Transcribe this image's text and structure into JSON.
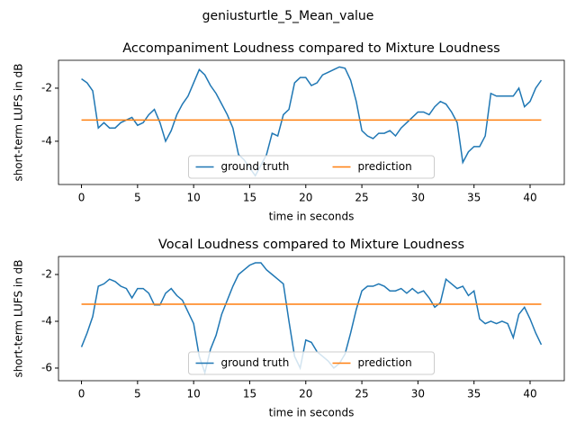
{
  "title": "geniusturtle_5_Mean_value",
  "chart_data": [
    {
      "type": "line",
      "title": "Accompaniment Loudness compared to Mixture Loudness",
      "xlabel": "time in seconds",
      "ylabel": "short-term LUFS in dB",
      "xlim": [
        -2.05,
        43.05
      ],
      "ylim": [
        -5.63,
        -0.95
      ],
      "xticks": [
        0,
        5,
        10,
        15,
        20,
        25,
        30,
        35,
        40
      ],
      "yticks": [
        -4,
        -2
      ],
      "legend": "lower center",
      "series": [
        {
          "name": "ground truth",
          "color": "#1f77b4",
          "x": [
            0,
            0.5,
            1,
            1.5,
            2,
            2.5,
            3,
            3.5,
            4,
            4.5,
            5,
            5.5,
            6,
            6.5,
            7,
            7.5,
            8,
            8.5,
            9,
            9.5,
            10,
            10.5,
            11,
            11.5,
            12,
            12.5,
            13,
            13.5,
            14,
            14.5,
            15,
            15.5,
            16,
            16.5,
            17,
            17.5,
            18,
            18.5,
            19,
            19.5,
            20,
            20.5,
            21,
            21.5,
            22,
            22.5,
            23,
            23.5,
            24,
            24.5,
            25,
            25.5,
            26,
            26.5,
            27,
            27.5,
            28,
            28.5,
            29,
            29.5,
            30,
            30.5,
            31,
            31.5,
            32,
            32.5,
            33,
            33.5,
            34,
            34.5,
            35,
            35.5,
            36,
            36.5,
            37,
            37.5,
            38,
            38.5,
            39,
            39.5,
            40,
            40.5,
            41
          ],
          "values": [
            -1.65,
            -1.8,
            -2.1,
            -3.5,
            -3.3,
            -3.5,
            -3.5,
            -3.3,
            -3.2,
            -3.1,
            -3.4,
            -3.3,
            -3.0,
            -2.8,
            -3.3,
            -4.0,
            -3.6,
            -3.0,
            -2.6,
            -2.3,
            -1.8,
            -1.3,
            -1.5,
            -1.9,
            -2.2,
            -2.6,
            -3.0,
            -3.5,
            -4.5,
            -4.7,
            -5.0,
            -5.3,
            -4.9,
            -4.5,
            -3.7,
            -3.8,
            -3.0,
            -2.8,
            -1.8,
            -1.6,
            -1.6,
            -1.9,
            -1.8,
            -1.5,
            -1.4,
            -1.3,
            -1.2,
            -1.25,
            -1.7,
            -2.5,
            -3.6,
            -3.8,
            -3.9,
            -3.7,
            -3.7,
            -3.6,
            -3.8,
            -3.5,
            -3.3,
            -3.1,
            -2.9,
            -2.9,
            -3.0,
            -2.7,
            -2.5,
            -2.6,
            -2.9,
            -3.3,
            -4.8,
            -4.4,
            -4.2,
            -4.2,
            -3.8,
            -2.2,
            -2.3,
            -2.3,
            -2.3,
            -2.3,
            -2.0,
            -2.7,
            -2.5,
            -2.0,
            -1.7
          ]
        },
        {
          "name": "prediction",
          "color": "#ff7f0e",
          "x": [
            0,
            41
          ],
          "values": [
            -3.2,
            -3.2
          ]
        }
      ]
    },
    {
      "type": "line",
      "title": "Vocal Loudness compared to Mixture Loudness",
      "xlabel": "time in seconds",
      "ylabel": "short-term LUFS in dB",
      "xlim": [
        -2.05,
        43.05
      ],
      "ylim": [
        -6.54,
        -1.23
      ],
      "xticks": [
        0,
        5,
        10,
        15,
        20,
        25,
        30,
        35,
        40
      ],
      "yticks": [
        -6,
        -4,
        -2
      ],
      "legend": "lower center",
      "series": [
        {
          "name": "ground truth",
          "color": "#1f77b4",
          "x": [
            0,
            0.5,
            1,
            1.5,
            2,
            2.5,
            3,
            3.5,
            4,
            4.5,
            5,
            5.5,
            6,
            6.5,
            7,
            7.5,
            8,
            8.5,
            9,
            9.5,
            10,
            10.5,
            11,
            11.5,
            12,
            12.5,
            13,
            13.5,
            14,
            14.5,
            15,
            15.5,
            16,
            16.5,
            17,
            17.5,
            18,
            18.5,
            19,
            19.5,
            20,
            20.5,
            21,
            21.5,
            22,
            22.5,
            23,
            23.5,
            24,
            24.5,
            25,
            25.5,
            26,
            26.5,
            27,
            27.5,
            28,
            28.5,
            29,
            29.5,
            30,
            30.5,
            31,
            31.5,
            32,
            32.5,
            33,
            33.5,
            34,
            34.5,
            35,
            35.5,
            36,
            36.5,
            37,
            37.5,
            38,
            38.5,
            39,
            39.5,
            40,
            40.5,
            41
          ],
          "values": [
            -5.1,
            -4.5,
            -3.8,
            -2.5,
            -2.4,
            -2.2,
            -2.3,
            -2.5,
            -2.6,
            -3.0,
            -2.6,
            -2.6,
            -2.8,
            -3.3,
            -3.3,
            -2.8,
            -2.6,
            -2.9,
            -3.1,
            -3.6,
            -4.1,
            -5.5,
            -6.2,
            -5.2,
            -4.6,
            -3.7,
            -3.1,
            -2.5,
            -2.0,
            -1.8,
            -1.6,
            -1.5,
            -1.5,
            -1.8,
            -2.0,
            -2.2,
            -2.4,
            -4.0,
            -5.5,
            -6.0,
            -4.8,
            -4.9,
            -5.3,
            -5.5,
            -5.7,
            -6.0,
            -5.8,
            -5.4,
            -4.5,
            -3.5,
            -2.7,
            -2.5,
            -2.5,
            -2.4,
            -2.5,
            -2.7,
            -2.7,
            -2.6,
            -2.8,
            -2.6,
            -2.8,
            -2.7,
            -3.0,
            -3.4,
            -3.2,
            -2.2,
            -2.4,
            -2.6,
            -2.5,
            -2.9,
            -2.7,
            -3.9,
            -4.1,
            -4.0,
            -4.1,
            -4.0,
            -4.1,
            -4.7,
            -3.7,
            -3.4,
            -3.9,
            -4.5,
            -5.0
          ]
        },
        {
          "name": "prediction",
          "color": "#ff7f0e",
          "x": [
            0,
            41
          ],
          "values": [
            -3.27,
            -3.27
          ]
        }
      ]
    }
  ]
}
